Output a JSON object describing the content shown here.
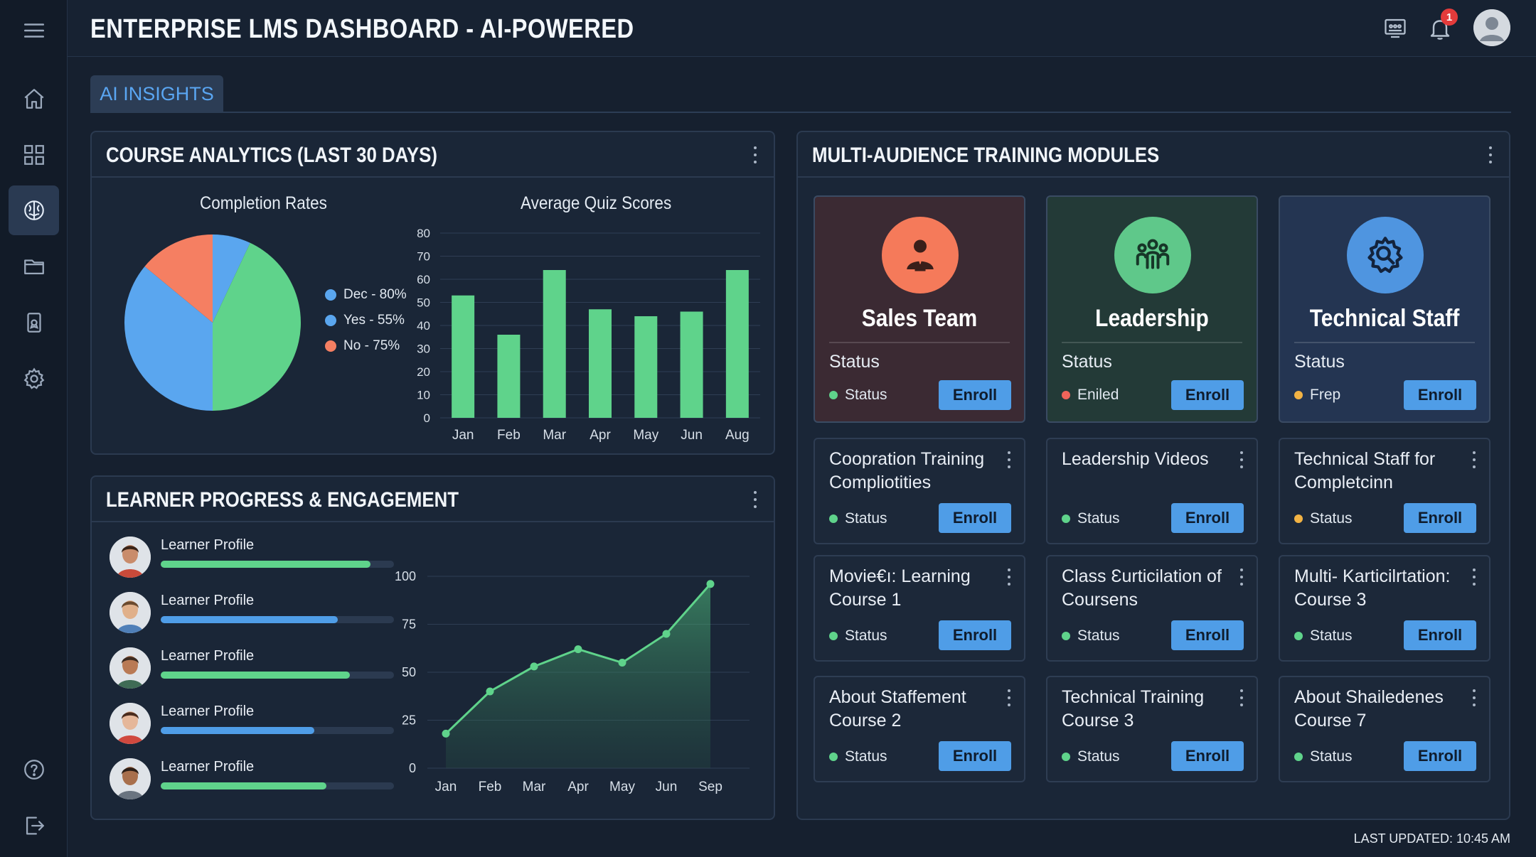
{
  "header": {
    "title": "ENTERPRISE LMS DASHBOARD - AI-POWERED",
    "notification_count": "1"
  },
  "sidebar": {
    "items": [
      {
        "icon": "home-icon"
      },
      {
        "icon": "grid-icon"
      },
      {
        "icon": "brain-icon",
        "active": true
      },
      {
        "icon": "folder-icon"
      },
      {
        "icon": "certificate-icon"
      },
      {
        "icon": "gear-icon"
      },
      {
        "icon": "help-icon"
      },
      {
        "icon": "logout-icon"
      }
    ]
  },
  "tabs": [
    {
      "label": "AI INSIGHTS",
      "active": true
    }
  ],
  "analytics": {
    "title": "COURSE ANALYTICS (LAST 30 DAYS)"
  },
  "progress": {
    "title": "LEARNER PROGRESS & ENGAGEMENT",
    "learners": [
      {
        "name": "Learner Profile",
        "progress": 0.9,
        "color": "#5fd38b"
      },
      {
        "name": "Learner Profile",
        "progress": 0.76,
        "color": "#4f9de7"
      },
      {
        "name": "Learner Profile",
        "progress": 0.81,
        "color": "#5fd38b"
      },
      {
        "name": "Learner Profile",
        "progress": 0.66,
        "color": "#4f9de7"
      },
      {
        "name": "Learner Profile",
        "progress": 0.71,
        "color": "#5fd38b"
      }
    ]
  },
  "modules": {
    "title": "MULTI-AUDIENCE TRAINING MODULES",
    "audiences": [
      {
        "title": "Sales Team",
        "status_label": "Status",
        "status_text": "Status",
        "status_color": "#5fd38b",
        "enroll": "Enroll",
        "bg": "#3b2a33",
        "circle": "#f57a5a",
        "icon": "salesperson-icon"
      },
      {
        "title": "Leadership",
        "status_label": "Status",
        "status_text": "Eniled",
        "status_color": "#f0645a",
        "enroll": "Enroll",
        "bg": "#233a37",
        "circle": "#5fc88a",
        "icon": "team-icon"
      },
      {
        "title": "Technical Staff",
        "status_label": "Status",
        "status_text": "Frep",
        "status_color": "#f2b344",
        "enroll": "Enroll",
        "bg": "#243552",
        "circle": "#4f95e0",
        "icon": "gear-wrench-icon"
      }
    ],
    "courses": [
      {
        "title": "Coopration Training Compliotities",
        "status": "Status",
        "status_color": "#5fd38b",
        "enroll": "Enroll"
      },
      {
        "title": "Leadership Videos",
        "status": "Status",
        "status_color": "#5fd38b",
        "enroll": "Enroll"
      },
      {
        "title": "Technical Staff for Completcinn",
        "status": "Status",
        "status_color": "#f2b344",
        "enroll": "Enroll"
      },
      {
        "title": "Movie€ı: Learning Course 1",
        "status": "Status",
        "status_color": "#5fd38b",
        "enroll": "Enroll"
      },
      {
        "title": "Class Ɛurticilation of Coursens",
        "status": "Status",
        "status_color": "#5fd38b",
        "enroll": "Enroll"
      },
      {
        "title": "Multi- Karticilrtation: Course 3",
        "status": "Status",
        "status_color": "#5fd38b",
        "enroll": "Enroll"
      },
      {
        "title": "About Staffement Course 2",
        "status": "Status",
        "status_color": "#5fd38b",
        "enroll": "Enroll"
      },
      {
        "title": "Technical Training Course 3",
        "status": "Status",
        "status_color": "#5fd38b",
        "enroll": "Enroll"
      },
      {
        "title": "About Shailedenes Course 7",
        "status": "Status",
        "status_color": "#5fd38b",
        "enroll": "Enroll"
      }
    ]
  },
  "footer": {
    "last_updated": "LAST UPDATED: 10:45 AM"
  },
  "chart_data": [
    {
      "type": "pie",
      "title": "Completion Rates",
      "slices": [
        {
          "label": "Dec - 80%",
          "value": 43,
          "color": "#5fd38b"
        },
        {
          "label": "Yes - 55%",
          "value": 36,
          "color": "#5aa6ef"
        },
        {
          "label": "No - 75%",
          "value": 14,
          "color": "#f57f62"
        },
        {
          "label": "",
          "value": 7,
          "color": "#5aa6ef"
        }
      ],
      "legend": [
        {
          "label": "Dec - 80%",
          "color": "#5aa6ef"
        },
        {
          "label": "Yes - 55%",
          "color": "#5aa6ef"
        },
        {
          "label": "No - 75%",
          "color": "#f57f62"
        }
      ],
      "legend_position": "right"
    },
    {
      "type": "bar",
      "title": "Average Quiz Scores",
      "categories": [
        "Jan",
        "Feb",
        "Mar",
        "Apr",
        "May",
        "Jun",
        "Aug"
      ],
      "values": [
        53,
        36,
        64,
        47,
        44,
        46,
        64
      ],
      "ylim": [
        0,
        80
      ],
      "yticks": [
        0,
        10,
        20,
        30,
        40,
        50,
        60,
        70,
        80
      ],
      "color": "#5fd38b",
      "grid": true
    },
    {
      "type": "area",
      "title": "",
      "categories": [
        "Jan",
        "Feb",
        "Mar",
        "Apr",
        "May",
        "Jun",
        "Sep"
      ],
      "points": [
        {
          "x": 0,
          "y": 18
        },
        {
          "x": 1,
          "y": 40
        },
        {
          "x": 2,
          "y": 53
        },
        {
          "x": 3,
          "y": 62
        },
        {
          "x": 4,
          "y": 55
        },
        {
          "x": 5,
          "y": 70
        },
        {
          "x": 6,
          "y": 96
        }
      ],
      "ylim": [
        0,
        100
      ],
      "yticks": [
        0,
        25,
        50,
        75,
        100
      ],
      "color": "#5fd38b",
      "grid": true
    }
  ]
}
